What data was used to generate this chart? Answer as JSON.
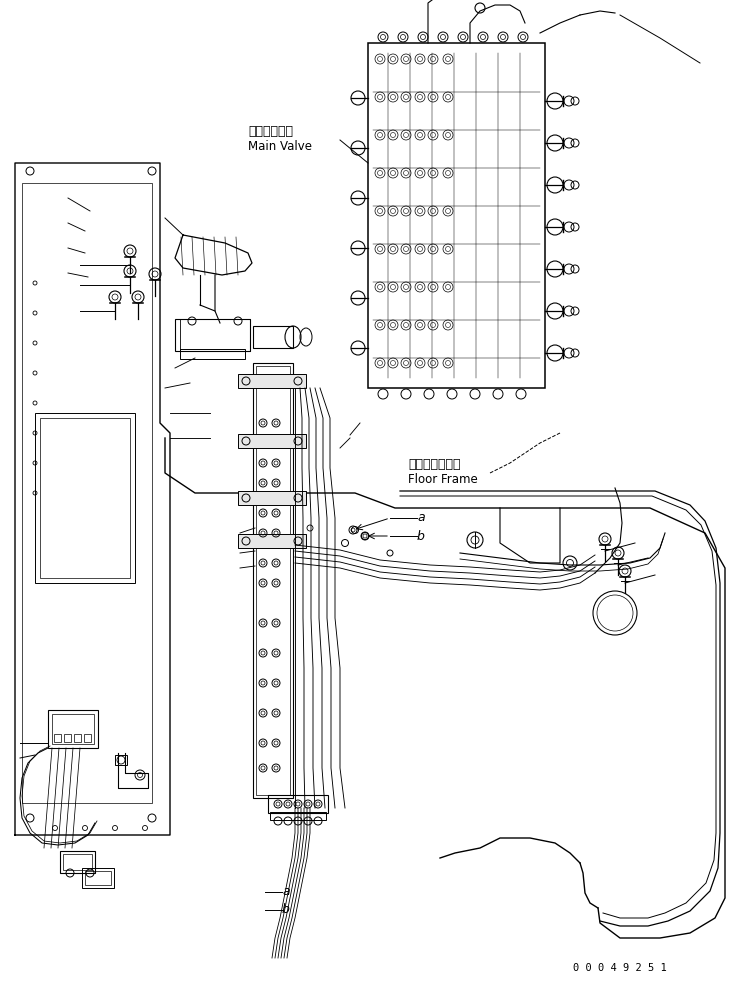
{
  "bg_color": "#ffffff",
  "line_color": "#000000",
  "fig_width": 7.41,
  "fig_height": 9.83,
  "dpi": 100,
  "label_main_valve_jp": "メインバルブ",
  "label_main_valve_en": "Main Valve",
  "label_floor_frame_jp": "フロアフレーム",
  "label_floor_frame_en": "Floor Frame",
  "label_a": "a",
  "label_b": "b",
  "part_number": "0 0 0 4 9 2 5 1"
}
